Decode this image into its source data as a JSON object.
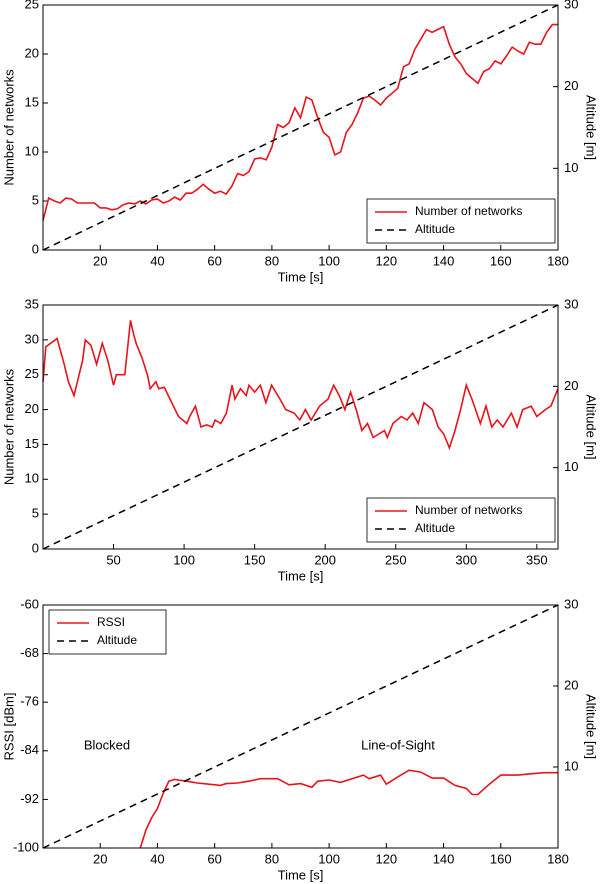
{
  "chart_data": [
    {
      "type": "line",
      "xlabel": "Time [s]",
      "ylabel": "Number of networks",
      "y2label": "Altitude [m]",
      "xlim": [
        0,
        180
      ],
      "xticks": [
        20,
        40,
        60,
        80,
        100,
        120,
        140,
        160,
        180
      ],
      "ylim": [
        0,
        25
      ],
      "yticks": [
        0,
        5,
        10,
        15,
        20,
        25
      ],
      "y2lim": [
        0,
        30
      ],
      "y2ticks": [
        10,
        20,
        30
      ],
      "legend": "lower right",
      "series": [
        {
          "name": "Number of networks",
          "color": "#e8141c",
          "style": "solid",
          "x": [
            0,
            2,
            4,
            6,
            8,
            10,
            12,
            16,
            18,
            20,
            22,
            24,
            26,
            28,
            30,
            32,
            34,
            36,
            38,
            40,
            42,
            44,
            46,
            48,
            50,
            52,
            54,
            56,
            58,
            60,
            62,
            64,
            66,
            68,
            70,
            72,
            74,
            76,
            78,
            80,
            82,
            84,
            86,
            88,
            90,
            92,
            94,
            96,
            98,
            100,
            102,
            104,
            106,
            108,
            110,
            112,
            114,
            116,
            118,
            120,
            122,
            124,
            126,
            128,
            130,
            132,
            134,
            136,
            138,
            140,
            142,
            144,
            146,
            148,
            150,
            152,
            154,
            156,
            158,
            160,
            162,
            164,
            166,
            168,
            170,
            172,
            174,
            176,
            178,
            180
          ],
          "values": [
            3,
            5.3,
            5,
            4.8,
            5.3,
            5.2,
            4.8,
            4.8,
            4.8,
            4.3,
            4.3,
            4.1,
            4.2,
            4.6,
            4.8,
            4.7,
            5,
            4.7,
            5.1,
            5.2,
            4.8,
            5,
            5.4,
            5.1,
            5.8,
            5.8,
            6.2,
            6.7,
            6.2,
            5.8,
            6,
            5.7,
            6.5,
            7.8,
            7.6,
            8,
            9.3,
            9.4,
            9.2,
            10.5,
            12.8,
            12.5,
            13,
            14.5,
            13.5,
            15.6,
            15.3,
            13.5,
            12,
            11.5,
            9.7,
            10,
            12,
            12.8,
            14,
            15.5,
            15.7,
            15.3,
            14.8,
            15.5,
            16,
            16.5,
            18.7,
            19,
            20.5,
            21.5,
            22.5,
            22.2,
            22.5,
            22.8,
            21,
            19.7,
            19,
            18,
            17.5,
            17,
            18.2,
            18.5,
            19.3,
            19,
            19.8,
            20.7,
            20.3,
            20,
            21.2,
            21,
            21,
            22.2,
            23,
            23
          ]
        },
        {
          "name": "Altitude",
          "color": "#000000",
          "style": "dashed",
          "axis": "y2",
          "x": [
            0,
            180
          ],
          "values": [
            0,
            30
          ]
        }
      ]
    },
    {
      "type": "line",
      "xlabel": "Time [s]",
      "ylabel": "Number of networks",
      "y2label": "Altitude [m]",
      "xlim": [
        0,
        365
      ],
      "xticks": [
        50,
        100,
        150,
        200,
        250,
        300,
        350
      ],
      "ylim": [
        0,
        35
      ],
      "yticks": [
        0,
        5,
        10,
        15,
        20,
        25,
        30,
        35
      ],
      "y2lim": [
        0,
        30
      ],
      "y2ticks": [
        10,
        20,
        30
      ],
      "legend": "lower right",
      "series": [
        {
          "name": "Number of networks",
          "color": "#e8141c",
          "style": "solid",
          "x": [
            0,
            2,
            10,
            15,
            18,
            22,
            28,
            30,
            34,
            38,
            42,
            46,
            50,
            52,
            58,
            62,
            64,
            66,
            70,
            74,
            76,
            80,
            82,
            86,
            90,
            96,
            102,
            104,
            108,
            112,
            116,
            120,
            122,
            126,
            130,
            134,
            136,
            140,
            144,
            146,
            150,
            154,
            158,
            162,
            168,
            172,
            178,
            182,
            186,
            190,
            196,
            202,
            206,
            210,
            214,
            218,
            222,
            226,
            230,
            234,
            238,
            242,
            244,
            248,
            254,
            258,
            262,
            266,
            270,
            276,
            280,
            284,
            288,
            292,
            296,
            300,
            304,
            310,
            314,
            318,
            322,
            326,
            332,
            336,
            340,
            346,
            350,
            356,
            360,
            365
          ],
          "values": [
            24,
            29,
            30.2,
            26.5,
            24,
            22,
            27,
            30,
            29.2,
            26.5,
            29.5,
            27,
            23.5,
            25,
            25,
            32.8,
            31,
            29.5,
            27.5,
            25,
            23,
            24,
            23,
            23.2,
            21.5,
            19,
            18,
            19,
            20.5,
            17.5,
            17.8,
            17.5,
            18.5,
            18,
            19.5,
            23.5,
            21.5,
            23,
            22,
            23.5,
            22.5,
            23.5,
            21,
            23.5,
            21.5,
            20,
            19.5,
            18.5,
            20,
            18.5,
            20.5,
            21.5,
            23.5,
            22,
            20,
            22.5,
            20,
            17,
            18,
            16,
            16.5,
            17,
            16,
            18,
            19,
            18.5,
            19.5,
            18,
            21,
            20,
            17.5,
            16.5,
            14.5,
            17,
            20,
            23.5,
            21.5,
            18,
            20.5,
            17.5,
            18.5,
            17.5,
            19.5,
            17.5,
            20,
            20.5,
            19,
            20,
            20.5,
            23
          ]
        },
        {
          "name": "Altitude",
          "color": "#000000",
          "style": "dashed",
          "axis": "y2",
          "x": [
            0,
            365
          ],
          "values": [
            0,
            30
          ]
        }
      ]
    },
    {
      "type": "line",
      "xlabel": "Time [s]",
      "ylabel": "RSSI [dBm]",
      "y2label": "Altitude [m]",
      "xlim": [
        0,
        180
      ],
      "xticks": [
        20,
        40,
        60,
        80,
        100,
        120,
        140,
        160,
        180
      ],
      "ylim": [
        -100,
        -60
      ],
      "yticks": [
        -100,
        -92,
        -84,
        -76,
        -68,
        -60
      ],
      "y2lim": [
        0,
        30
      ],
      "y2ticks": [
        10,
        20,
        30
      ],
      "legend": "upper left",
      "annotations": [
        "Blocked",
        "Line-of-Sight"
      ],
      "series": [
        {
          "name": "RSSI",
          "color": "#e8141c",
          "style": "solid",
          "x": [
            34,
            36,
            38,
            40,
            42,
            44,
            46,
            50,
            54,
            58,
            62,
            64,
            68,
            72,
            76,
            82,
            86,
            90,
            94,
            96,
            100,
            104,
            108,
            112,
            114,
            118,
            120,
            124,
            128,
            132,
            136,
            140,
            144,
            148,
            150,
            152,
            156,
            160,
            166,
            170,
            175,
            180
          ],
          "values": [
            -100,
            -97,
            -95,
            -93.5,
            -91,
            -89,
            -88.7,
            -89,
            -89.3,
            -89.5,
            -89.7,
            -89.4,
            -89.3,
            -89,
            -88.6,
            -88.6,
            -89.6,
            -89.4,
            -90,
            -89,
            -88.8,
            -89.2,
            -88.6,
            -88,
            -88.6,
            -88,
            -89.5,
            -88.3,
            -87.2,
            -87.5,
            -88.5,
            -88.5,
            -89.7,
            -90.2,
            -91.2,
            -91.2,
            -89.5,
            -88,
            -88,
            -87.8,
            -87.6,
            -87.6
          ]
        },
        {
          "name": "Altitude",
          "color": "#000000",
          "style": "dashed",
          "axis": "y2",
          "x": [
            0,
            180
          ],
          "values": [
            0,
            30
          ]
        }
      ]
    }
  ]
}
